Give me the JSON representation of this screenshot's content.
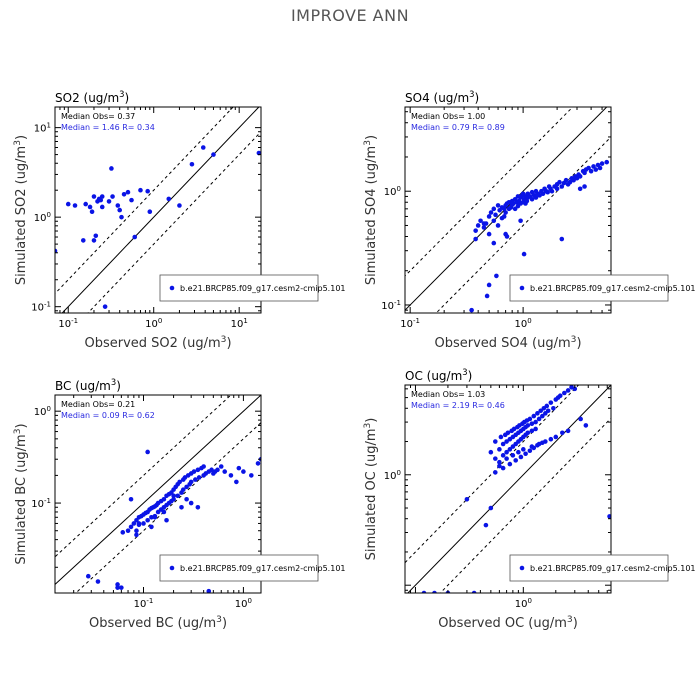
{
  "title": "IMPROVE ANN",
  "colors": {
    "points": "#0a14e6",
    "stat_blue": "#2a2ae0"
  },
  "chart_data": [
    {
      "type": "scatter",
      "panel_title": "SO2 (ug/m3)",
      "xlabel": "Observed SO2 (ug/m3)",
      "ylabel": "Simulated SO2 (ug/m3)",
      "xlim": [
        0.07,
        18
      ],
      "ylim": [
        0.085,
        17
      ],
      "x_ticks": [
        "10-1",
        "100",
        "101"
      ],
      "y_ticks": [
        "10-1",
        "100",
        "101"
      ],
      "median_obs_text": "Median Obs= 0.37",
      "median_sim_text": "Median = 1.46 R= 0.34",
      "legend": "b.e21.BRCP85.f09_g17.cesm2-cmip5.101",
      "x": [
        0.07,
        0.1,
        0.12,
        0.15,
        0.16,
        0.18,
        0.19,
        0.2,
        0.2,
        0.21,
        0.22,
        0.23,
        0.24,
        0.25,
        0.25,
        0.27,
        0.3,
        0.32,
        0.33,
        0.38,
        0.4,
        0.42,
        0.45,
        0.5,
        0.55,
        0.6,
        0.7,
        0.85,
        0.9,
        1.5,
        2.0,
        2.8,
        3.8,
        5.0,
        17.0,
        18.0
      ],
      "y": [
        0.42,
        1.4,
        1.35,
        0.55,
        1.4,
        1.3,
        1.15,
        0.55,
        1.7,
        0.62,
        1.5,
        1.6,
        1.55,
        1.7,
        1.3,
        0.1,
        1.5,
        3.5,
        1.7,
        1.35,
        1.2,
        1.0,
        1.8,
        1.9,
        1.55,
        0.6,
        2.0,
        1.95,
        1.15,
        1.6,
        1.35,
        3.9,
        6.0,
        5.0,
        5.2,
        0.15
      ]
    },
    {
      "type": "scatter",
      "panel_title": "SO4 (ug/m3)",
      "xlabel": "Observed SO4 (ug/m3)",
      "ylabel": "Simulated SO4 (ug/m3)",
      "xlim": [
        0.09,
        6
      ],
      "ylim": [
        0.085,
        5.5
      ],
      "x_ticks": [
        "10-1",
        "100"
      ],
      "y_ticks": [
        "10-1",
        "100"
      ],
      "median_obs_text": "Median Obs= 1.00",
      "median_sim_text": "Median = 0.79 R= 0.89",
      "legend": "b.e21.BRCP85.f09_g17.cesm2-cmip5.101",
      "x": [
        0.35,
        0.38,
        0.4,
        0.42,
        0.45,
        0.47,
        0.5,
        0.5,
        0.52,
        0.55,
        0.55,
        0.57,
        0.6,
        0.6,
        0.62,
        0.65,
        0.65,
        0.68,
        0.7,
        0.7,
        0.72,
        0.75,
        0.75,
        0.78,
        0.8,
        0.8,
        0.82,
        0.85,
        0.85,
        0.88,
        0.9,
        0.9,
        0.92,
        0.95,
        0.95,
        0.98,
        1.0,
        1.0,
        1.02,
        1.05,
        1.05,
        1.08,
        1.1,
        1.1,
        1.15,
        1.2,
        1.2,
        1.25,
        1.3,
        1.3,
        1.35,
        1.4,
        1.45,
        1.5,
        1.55,
        1.6,
        1.65,
        1.7,
        1.75,
        1.8,
        1.9,
        2.0,
        2.0,
        2.1,
        2.2,
        2.3,
        2.4,
        2.5,
        2.6,
        2.7,
        2.8,
        2.9,
        3.0,
        3.1,
        3.2,
        3.4,
        3.5,
        3.6,
        3.8,
        4.0,
        4.2,
        4.4,
        4.6,
        4.8,
        5.0,
        5.5,
        0.48,
        0.5,
        0.55,
        0.58,
        0.7,
        0.72,
        0.95,
        1.02,
        2.2,
        3.2,
        3.5,
        0.38,
        0.45,
        0.68
      ],
      "y": [
        0.09,
        0.45,
        0.5,
        0.55,
        0.48,
        0.52,
        0.6,
        0.42,
        0.65,
        0.55,
        0.7,
        0.62,
        0.75,
        0.5,
        0.68,
        0.72,
        0.58,
        0.7,
        0.75,
        0.65,
        0.78,
        0.8,
        0.7,
        0.72,
        0.82,
        0.76,
        0.78,
        0.85,
        0.7,
        0.8,
        0.9,
        0.74,
        0.82,
        0.88,
        0.78,
        0.92,
        0.95,
        0.8,
        0.85,
        0.9,
        0.78,
        0.82,
        0.95,
        0.88,
        0.9,
        0.85,
        0.98,
        0.92,
        0.88,
        1.0,
        0.95,
        0.92,
        1.0,
        0.95,
        1.05,
        1.0,
        0.98,
        1.1,
        1.05,
        1.0,
        1.1,
        1.15,
        1.05,
        1.2,
        1.1,
        1.18,
        1.25,
        1.15,
        1.2,
        1.3,
        1.25,
        1.35,
        1.3,
        1.4,
        1.35,
        1.5,
        1.45,
        1.55,
        1.6,
        1.5,
        1.65,
        1.55,
        1.7,
        1.6,
        1.75,
        1.8,
        0.12,
        0.15,
        0.35,
        0.18,
        0.42,
        0.4,
        0.55,
        0.28,
        0.38,
        1.05,
        1.1,
        0.38,
        0.52,
        0.6
      ]
    },
    {
      "type": "scatter",
      "panel_title": "BC (ug/m3)",
      "xlabel": "Observed BC (ug/m3)",
      "ylabel": "Simulated BC (ug/m3)",
      "xlim": [
        0.013,
        1.5
      ],
      "ylim": [
        0.0105,
        1.5
      ],
      "x_ticks": [
        "10-1",
        "100"
      ],
      "y_ticks": [
        "10-1",
        "100"
      ],
      "median_obs_text": "Median Obs= 0.21",
      "median_sim_text": "Median = 0.09 R= 0.62",
      "legend": "b.e21.BRCP85.f09_g17.cesm2-cmip5.101",
      "x": [
        0.028,
        0.035,
        0.055,
        0.06,
        0.062,
        0.07,
        0.075,
        0.08,
        0.085,
        0.085,
        0.09,
        0.09,
        0.095,
        0.1,
        0.1,
        0.105,
        0.11,
        0.11,
        0.115,
        0.12,
        0.12,
        0.125,
        0.13,
        0.13,
        0.135,
        0.14,
        0.14,
        0.15,
        0.15,
        0.16,
        0.16,
        0.17,
        0.17,
        0.18,
        0.18,
        0.19,
        0.19,
        0.2,
        0.2,
        0.21,
        0.22,
        0.22,
        0.23,
        0.24,
        0.25,
        0.25,
        0.26,
        0.27,
        0.28,
        0.29,
        0.3,
        0.3,
        0.32,
        0.33,
        0.35,
        0.36,
        0.38,
        0.4,
        0.4,
        0.42,
        0.45,
        0.48,
        0.5,
        0.52,
        0.55,
        0.6,
        0.65,
        0.75,
        0.85,
        0.9,
        1.0,
        1.2,
        1.4,
        1.5,
        0.055,
        0.075,
        0.11,
        0.2,
        0.35,
        0.45,
        0.09,
        0.13,
        0.17,
        0.27,
        0.085,
        0.12,
        0.16,
        0.24,
        0.3
      ],
      "y": [
        0.016,
        0.014,
        0.013,
        0.012,
        0.048,
        0.05,
        0.055,
        0.06,
        0.065,
        0.05,
        0.07,
        0.058,
        0.072,
        0.075,
        0.06,
        0.078,
        0.08,
        0.065,
        0.085,
        0.088,
        0.07,
        0.09,
        0.092,
        0.072,
        0.095,
        0.1,
        0.08,
        0.105,
        0.085,
        0.11,
        0.09,
        0.12,
        0.095,
        0.125,
        0.1,
        0.13,
        0.105,
        0.14,
        0.11,
        0.15,
        0.16,
        0.12,
        0.17,
        0.13,
        0.18,
        0.14,
        0.19,
        0.15,
        0.2,
        0.16,
        0.21,
        0.17,
        0.22,
        0.18,
        0.23,
        0.19,
        0.24,
        0.2,
        0.25,
        0.21,
        0.22,
        0.23,
        0.21,
        0.22,
        0.23,
        0.25,
        0.22,
        0.2,
        0.17,
        0.24,
        0.22,
        0.2,
        0.27,
        0.3,
        0.012,
        0.11,
        0.36,
        0.12,
        0.09,
        0.011,
        0.06,
        0.07,
        0.065,
        0.11,
        0.045,
        0.055,
        0.08,
        0.09,
        0.1
      ]
    },
    {
      "type": "scatter",
      "panel_title": "OC (ug/m3)",
      "xlabel": "Observed OC (ug/m3)",
      "ylabel": "Simulated OC (ug/m3)",
      "xlim": [
        0.08,
        6.5
      ],
      "ylim": [
        0.085,
        6.5
      ],
      "x_ticks": [
        "100"
      ],
      "y_ticks": [
        "100"
      ],
      "median_obs_text": "Median Obs= 1.03",
      "median_sim_text": "Median = 2.19 R= 0.46",
      "legend": "b.e21.BRCP85.f09_g17.cesm2-cmip5.101",
      "x": [
        0.12,
        0.15,
        0.2,
        0.3,
        0.35,
        0.45,
        0.5,
        0.5,
        0.55,
        0.55,
        0.6,
        0.6,
        0.62,
        0.65,
        0.65,
        0.68,
        0.7,
        0.7,
        0.72,
        0.75,
        0.75,
        0.78,
        0.8,
        0.8,
        0.82,
        0.85,
        0.85,
        0.88,
        0.9,
        0.9,
        0.92,
        0.95,
        0.95,
        0.98,
        1.0,
        1.0,
        1.02,
        1.05,
        1.05,
        1.08,
        1.1,
        1.1,
        1.15,
        1.2,
        1.2,
        1.25,
        1.3,
        1.3,
        1.35,
        1.4,
        1.45,
        1.5,
        1.55,
        1.6,
        1.65,
        1.7,
        1.8,
        1.9,
        2.0,
        2.1,
        2.2,
        2.4,
        2.6,
        2.8,
        3.0,
        3.4,
        3.8,
        6.3,
        0.6,
        0.7,
        0.8,
        0.9,
        1.0,
        1.2,
        1.4,
        1.6,
        1.8,
        2.0,
        2.3,
        2.6,
        0.55,
        0.65,
        0.75,
        0.85,
        0.95,
        1.05,
        1.15,
        1.25,
        1.35,
        1.5
      ],
      "y": [
        0.08,
        0.08,
        0.08,
        0.6,
        0.08,
        0.35,
        0.5,
        1.6,
        1.4,
        2.0,
        1.7,
        1.2,
        2.2,
        1.9,
        1.5,
        2.3,
        2.0,
        1.6,
        2.4,
        2.1,
        1.7,
        2.5,
        2.2,
        1.8,
        2.6,
        2.3,
        1.9,
        2.7,
        2.4,
        2.0,
        2.8,
        2.5,
        2.1,
        2.9,
        2.6,
        2.2,
        3.0,
        2.7,
        2.3,
        3.1,
        2.8,
        2.4,
        3.2,
        2.9,
        2.5,
        3.4,
        3.0,
        2.6,
        3.6,
        3.2,
        3.8,
        3.4,
        4.0,
        3.6,
        4.2,
        3.8,
        4.5,
        4.0,
        4.8,
        5.0,
        5.2,
        5.5,
        5.8,
        6.2,
        6.0,
        3.2,
        2.8,
        0.42,
        1.3,
        1.4,
        1.5,
        1.6,
        1.7,
        1.8,
        1.9,
        2.0,
        2.1,
        2.2,
        2.4,
        2.5,
        1.05,
        1.15,
        1.25,
        1.35,
        1.45,
        1.55,
        1.65,
        1.75,
        1.85,
        1.95
      ]
    }
  ]
}
